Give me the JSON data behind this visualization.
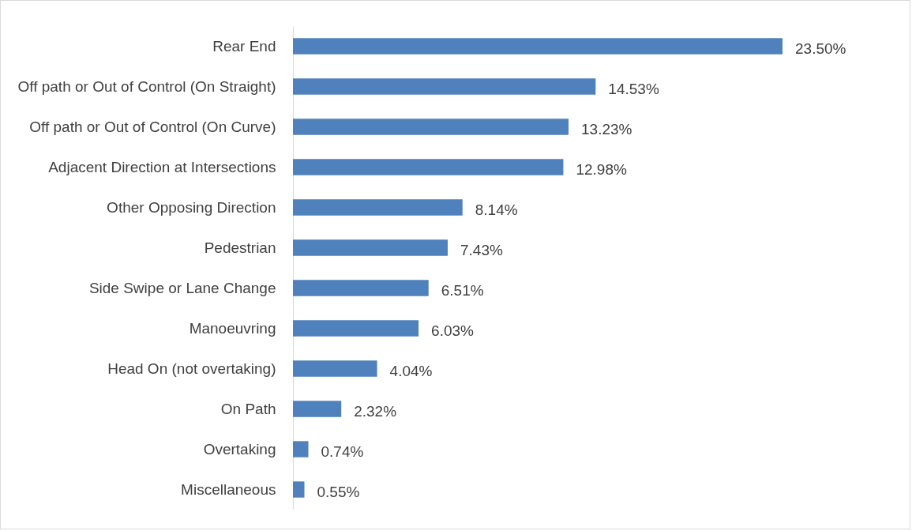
{
  "chart_data": {
    "type": "bar",
    "orientation": "horizontal",
    "categories": [
      "Rear End",
      "Off path or Out of Control (On Straight)",
      "Off path or Out of Control (On Curve)",
      "Adjacent Direction at Intersections",
      "Other Opposing Direction",
      "Pedestrian",
      "Side Swipe or Lane Change",
      "Manoeuvring",
      "Head On (not overtaking)",
      "On Path",
      "Overtaking",
      "Miscellaneous"
    ],
    "values": [
      23.5,
      14.53,
      13.23,
      12.98,
      8.14,
      7.43,
      6.51,
      6.03,
      4.04,
      2.32,
      0.74,
      0.55
    ],
    "value_labels": [
      "23.50%",
      "14.53%",
      "13.23%",
      "12.98%",
      "8.14%",
      "7.43%",
      "6.51%",
      "6.03%",
      "4.04%",
      "2.32%",
      "0.74%",
      "0.55%"
    ],
    "color": "#4f81bd",
    "grid": false
  }
}
